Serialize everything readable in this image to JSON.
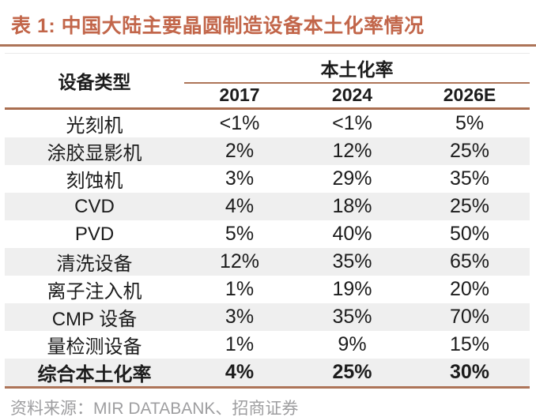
{
  "title": "表 1:  中国大陆主要晶圆制造设备本土化率情况",
  "header": {
    "equipment": "设备类型",
    "group": "本土化率",
    "years": [
      "2017",
      "2024",
      "2026E"
    ]
  },
  "chart_data": {
    "type": "table",
    "title": "表 1: 中国大陆主要晶圆制造设备本土化率情况",
    "columns": [
      "设备类型",
      "2017",
      "2024",
      "2026E"
    ],
    "column_group": {
      "label": "本土化率",
      "over_columns": [
        "2017",
        "2024",
        "2026E"
      ]
    },
    "rows": [
      {
        "label": "光刻机",
        "values": [
          "<1%",
          "<1%",
          "5%"
        ]
      },
      {
        "label": "涂胶显影机",
        "values": [
          "2%",
          "12%",
          "25%"
        ]
      },
      {
        "label": "刻蚀机",
        "values": [
          "3%",
          "29%",
          "35%"
        ]
      },
      {
        "label": "CVD",
        "values": [
          "4%",
          "18%",
          "25%"
        ]
      },
      {
        "label": "PVD",
        "values": [
          "5%",
          "40%",
          "50%"
        ]
      },
      {
        "label": "清洗设备",
        "values": [
          "12%",
          "35%",
          "65%"
        ]
      },
      {
        "label": "离子注入机",
        "values": [
          "1%",
          "19%",
          "20%"
        ]
      },
      {
        "label": "CMP 设备",
        "values": [
          "3%",
          "35%",
          "70%"
        ]
      },
      {
        "label": "量检测设备",
        "values": [
          "1%",
          "9%",
          "15%"
        ]
      },
      {
        "label": "综合本土化率",
        "values": [
          "4%",
          "25%",
          "30%"
        ],
        "emphasis": true
      }
    ],
    "source": "资料来源：MIR DATABANK、招商证券"
  },
  "footer": {
    "source": "资料来源：MIR DATABANK、招商证券"
  },
  "colors": {
    "accent": "#C2664A",
    "rule": "#AD7458",
    "rule_strong": "#A96E50",
    "row_alt": "#EFEFEF",
    "text_color": "#1C1C1C",
    "footer_text": "#9E9EA0"
  }
}
